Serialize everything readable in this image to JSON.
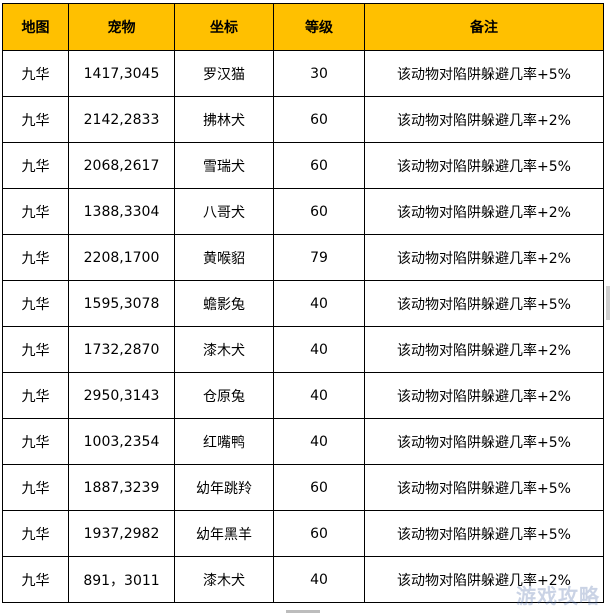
{
  "table": {
    "headers": {
      "map": "地图",
      "coord": "宠物",
      "pet": "坐标",
      "level": "等级",
      "note": "备注"
    },
    "rows": [
      {
        "map": "九华",
        "coord": "1417,3045",
        "pet": "罗汉猫",
        "level": "30",
        "note": "该动物对陷阱躲避几率+5%"
      },
      {
        "map": "九华",
        "coord": "2142,2833",
        "pet": "拂林犬",
        "level": "60",
        "note": "该动物对陷阱躲避几率+2%"
      },
      {
        "map": "九华",
        "coord": "2068,2617",
        "pet": "雪瑞犬",
        "level": "60",
        "note": "该动物对陷阱躲避几率+5%"
      },
      {
        "map": "九华",
        "coord": "1388,3304",
        "pet": "八哥犬",
        "level": "60",
        "note": "该动物对陷阱躲避几率+2%"
      },
      {
        "map": "九华",
        "coord": "2208,1700",
        "pet": "黄喉貂",
        "level": "79",
        "note": "该动物对陷阱躲避几率+2%"
      },
      {
        "map": "九华",
        "coord": "1595,3078",
        "pet": "蟾影兔",
        "level": "40",
        "note": "该动物对陷阱躲避几率+5%"
      },
      {
        "map": "九华",
        "coord": "1732,2870",
        "pet": "漆木犬",
        "level": "40",
        "note": "该动物对陷阱躲避几率+2%"
      },
      {
        "map": "九华",
        "coord": "2950,3143",
        "pet": "仓原兔",
        "level": "40",
        "note": "该动物对陷阱躲避几率+2%"
      },
      {
        "map": "九华",
        "coord": "1003,2354",
        "pet": "红嘴鸭",
        "level": "40",
        "note": "该动物对陷阱躲避几率+5%"
      },
      {
        "map": "九华",
        "coord": "1887,3239",
        "pet": "幼年跳羚",
        "level": "60",
        "note": "该动物对陷阱躲避几率+5%"
      },
      {
        "map": "九华",
        "coord": "1937,2982",
        "pet": "幼年黑羊",
        "level": "60",
        "note": "该动物对陷阱躲避几率+5%"
      },
      {
        "map": "九华",
        "coord": "891，3011",
        "pet": "漆木犬",
        "level": "40",
        "note": "该动物对陷阱躲避几率+2%"
      }
    ]
  },
  "colors": {
    "header_bg": "#ffc000",
    "border": "#000000",
    "text": "#000000"
  },
  "watermark": {
    "text": "游戏攻略"
  }
}
